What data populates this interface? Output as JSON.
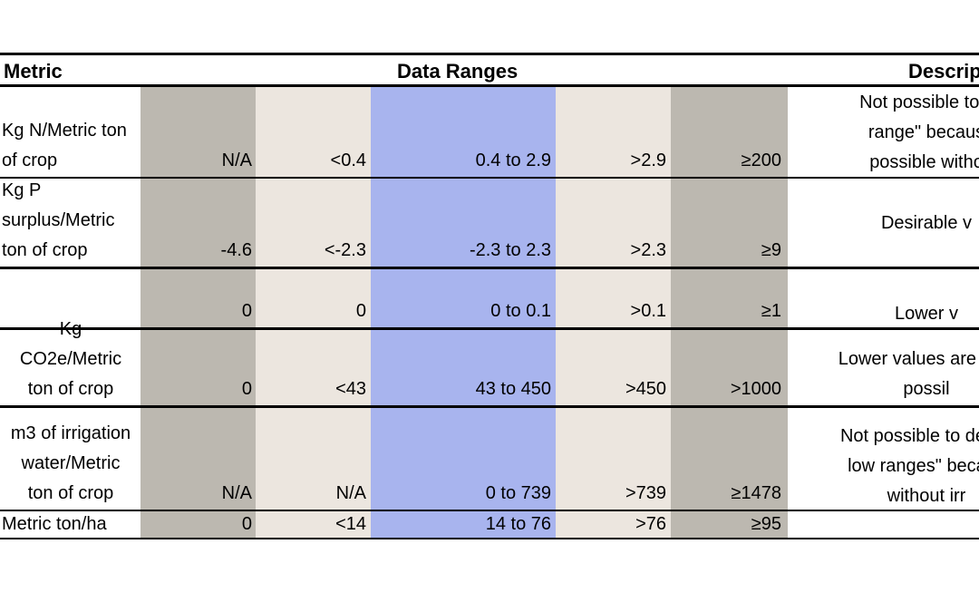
{
  "headers": {
    "metric": "Metric",
    "ranges": "Data Ranges",
    "description": "Descrip"
  },
  "rows": [
    {
      "metric": [
        "Kg N/Metric ton",
        "of crop"
      ],
      "values": [
        "N/A",
        "<0.4",
        "0.4 to 2.9",
        ">2.9",
        "≥200"
      ],
      "description": [
        "Not possible to c",
        "range\" becaus",
        "possible witho"
      ]
    },
    {
      "metric": [
        "Kg P",
        "surplus/Metric",
        "ton of crop"
      ],
      "values": [
        "-4.6",
        "<-2.3",
        "-2.3 to 2.3",
        ">2.3",
        "≥9"
      ],
      "description": [
        "Desirable v"
      ]
    },
    {
      "metric": [],
      "values": [
        "0",
        "0",
        "0 to 0.1",
        ">0.1",
        "≥1"
      ],
      "description": [
        "Lower v"
      ]
    },
    {
      "metric": [
        "Kg",
        "CO2e/Metric",
        "ton of crop"
      ],
      "values": [
        "0",
        "<43",
        "43 to 450",
        ">450",
        ">1000"
      ],
      "description": [
        "Lower values are desi",
        "possil"
      ]
    },
    {
      "metric": [
        "m3 of irrigation",
        "water/Metric",
        "ton of crop"
      ],
      "values": [
        "N/A",
        "N/A",
        "0 to 739",
        ">739",
        "≥1478"
      ],
      "description": [
        "Not possible to deterr",
        "low ranges\" becaus",
        "without irr"
      ]
    },
    {
      "metric": [
        "Metric ton/ha"
      ],
      "values": [
        "0",
        "<14",
        "14  to 76",
        ">76",
        "≥95"
      ],
      "description": []
    }
  ],
  "colors": {
    "gray_band": "#bcb8b0",
    "beige_band": "#ece6df",
    "blue_band": "#a8b4ee",
    "border": "#000000"
  }
}
